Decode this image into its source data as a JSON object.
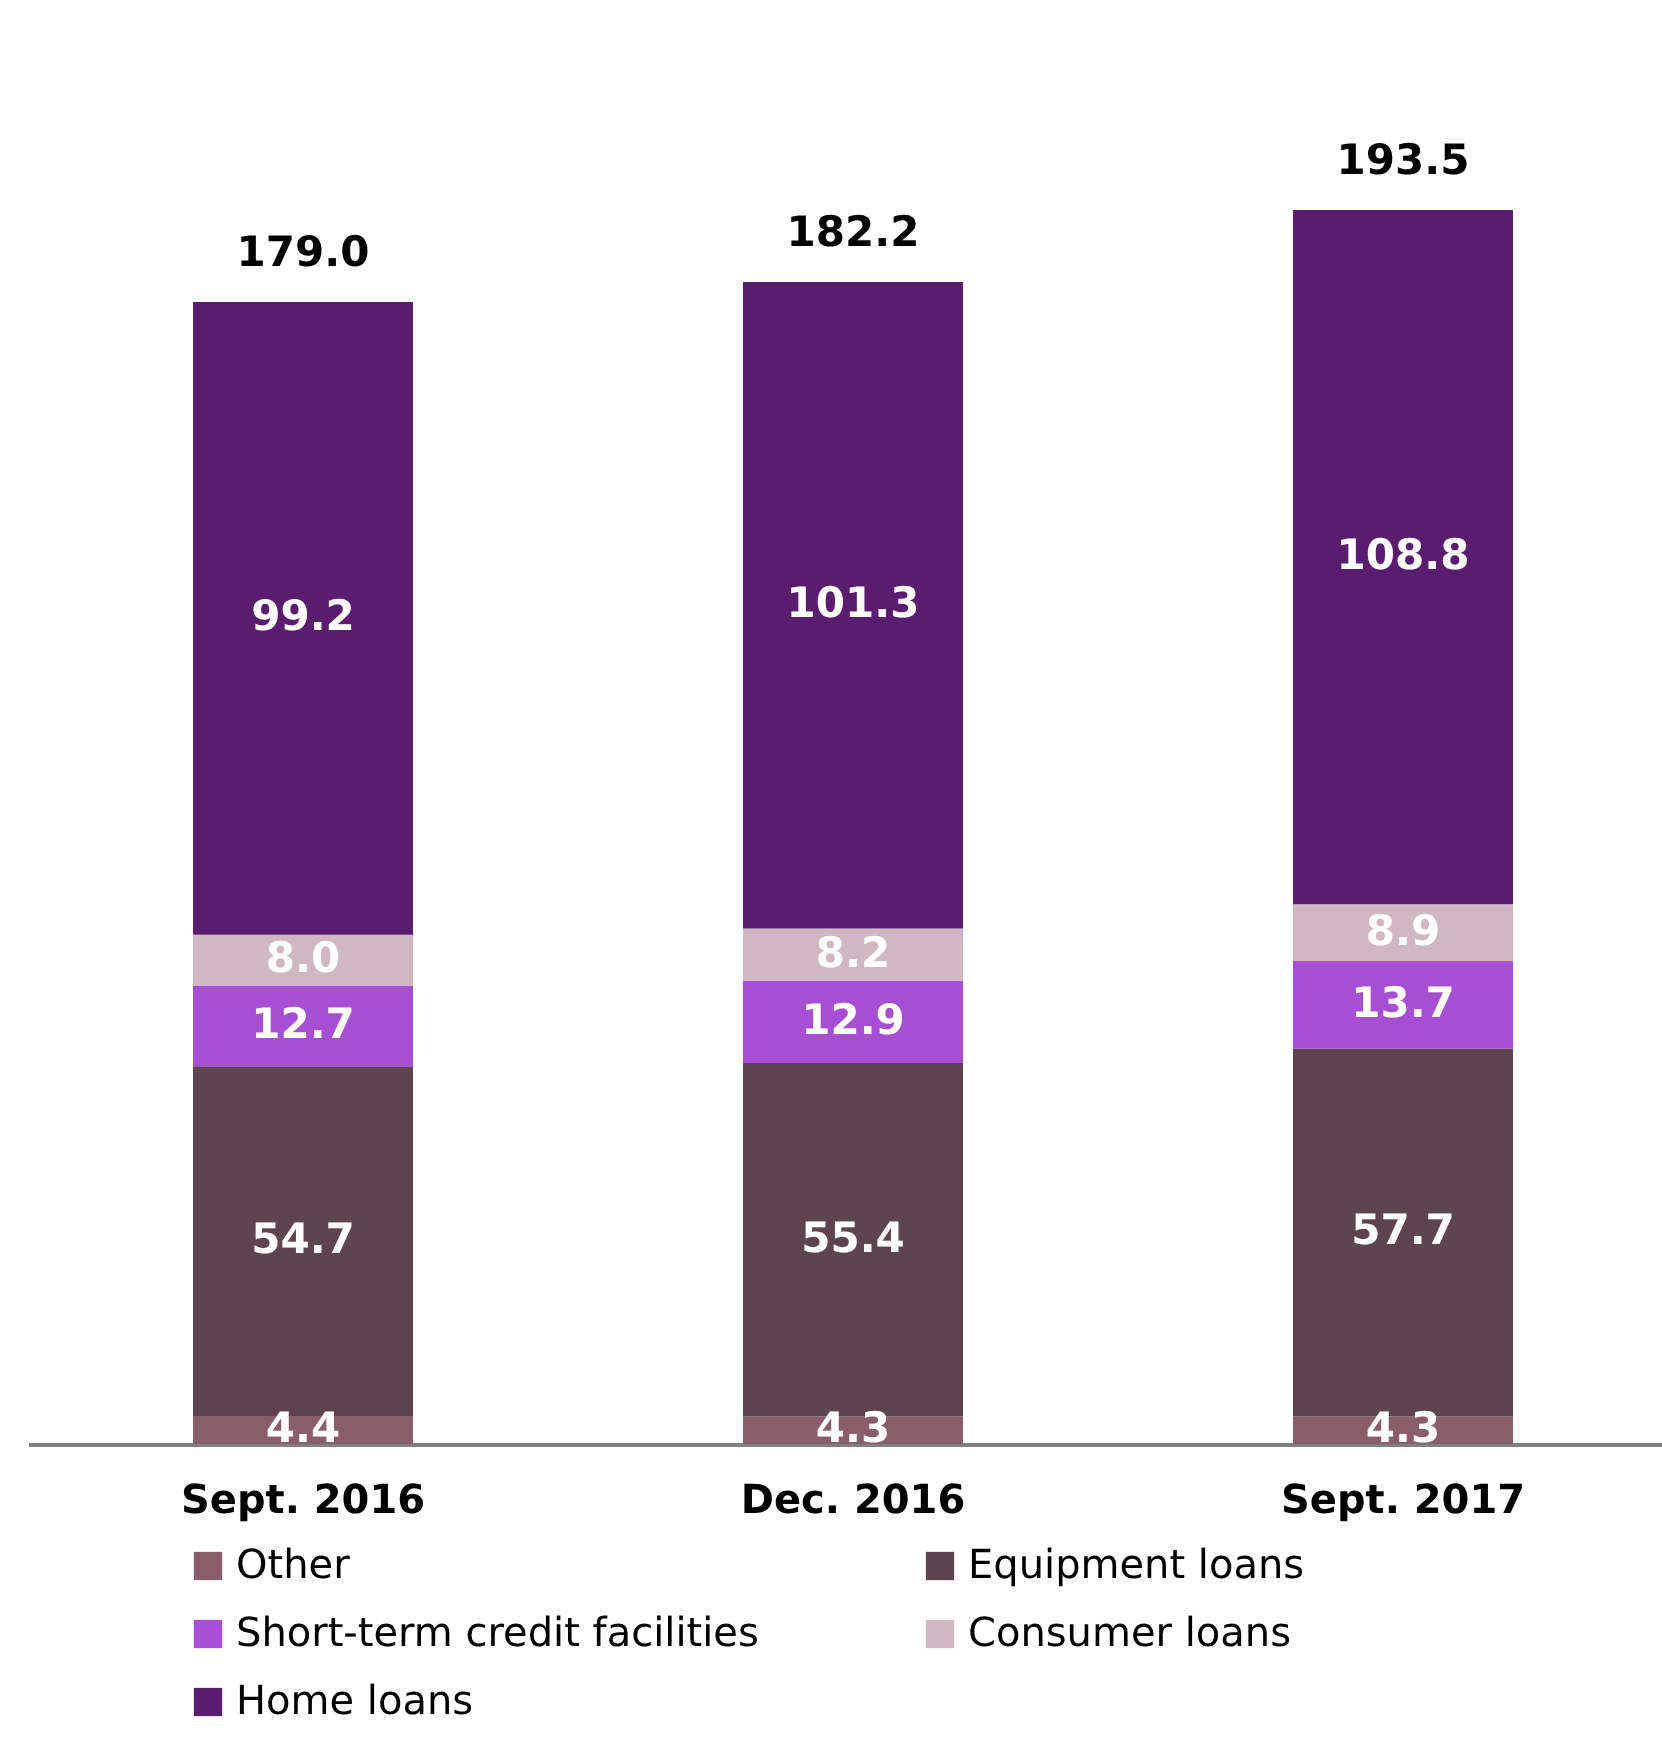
{
  "chart_data": {
    "type": "bar",
    "stacked": true,
    "legend": "bottom",
    "grid": false,
    "categories": [
      "Sept. 2016",
      "Dec. 2016",
      "Sept. 2017"
    ],
    "series": [
      {
        "name": "Other",
        "color": "#8a5d6b",
        "values": [
          4.4,
          4.3,
          4.3
        ],
        "value_labels": [
          "4.4",
          "4.3",
          "4.3"
        ]
      },
      {
        "name": "Equipment loans",
        "color": "#5e444f",
        "values": [
          54.7,
          55.4,
          57.7
        ],
        "value_labels": [
          "54.7",
          "55.4",
          "57.7"
        ]
      },
      {
        "name": "Short-term credit facilities",
        "color": "#a64fd4",
        "values": [
          12.7,
          12.9,
          13.7
        ],
        "value_labels": [
          "12.7",
          "12.9",
          "13.7"
        ]
      },
      {
        "name": "Consumer loans",
        "color": "#d0b8c2",
        "values": [
          8.0,
          8.2,
          8.9
        ],
        "value_labels": [
          "8.0",
          "8.2",
          "8.9"
        ]
      },
      {
        "name": "Home loans",
        "color": "#5a1c6e",
        "values": [
          99.2,
          101.3,
          108.8
        ],
        "value_labels": [
          "99.2",
          "101.3",
          "108.8"
        ]
      }
    ],
    "totals": [
      "179.0",
      "182.2",
      "193.5"
    ]
  }
}
